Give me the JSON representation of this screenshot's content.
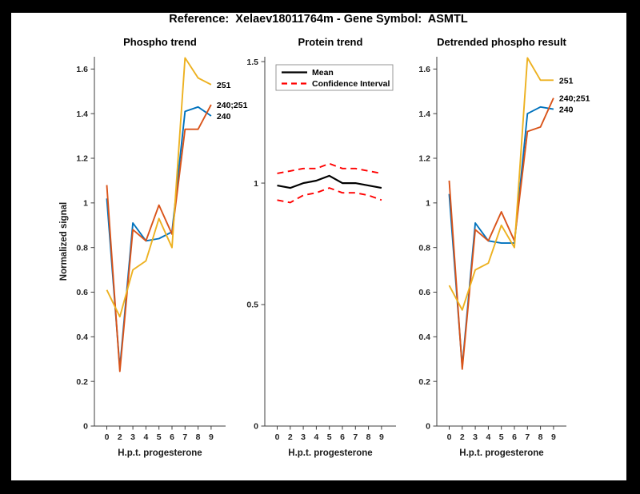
{
  "window": {
    "bg_color": "#000000"
  },
  "figure": {
    "bg_color": "#ffffff",
    "title": "Reference:  Xelaev18011764m - Gene Symbol:  ASMTL"
  },
  "colors": {
    "blue": "#0072BD",
    "orange": "#D95319",
    "yellow": "#EDB120",
    "red": "#FF0000",
    "black": "#000000",
    "spine": "#3f3f3f"
  },
  "chart_data": [
    {
      "type": "line",
      "title": "Phospho trend",
      "xlabel": "H.p.t. progesterone",
      "ylabel": "Normalized signal",
      "x_ticklabels": [
        "0",
        "2",
        "3",
        "4",
        "5",
        "6",
        "7",
        "8",
        "9"
      ],
      "yticks": [
        0,
        0.2,
        0.4,
        0.6,
        0.8,
        1,
        1.2,
        1.4,
        1.6
      ],
      "ylim": [
        0,
        1.655
      ],
      "grid": false,
      "legend_position": "none",
      "series": [
        {
          "name": "240",
          "color_key": "blue",
          "values": [
            1.02,
            0.26,
            0.91,
            0.83,
            0.84,
            0.87,
            1.41,
            1.43,
            1.39
          ],
          "end_label": "240"
        },
        {
          "name": "240;251",
          "color_key": "orange",
          "values": [
            1.08,
            0.245,
            0.88,
            0.83,
            0.99,
            0.86,
            1.33,
            1.33,
            1.44
          ],
          "end_label": "240;251"
        },
        {
          "name": "251",
          "color_key": "yellow",
          "values": [
            0.61,
            0.49,
            0.7,
            0.74,
            0.93,
            0.8,
            1.65,
            1.56,
            1.53
          ],
          "end_label": "251"
        }
      ]
    },
    {
      "type": "line",
      "title": "Protein trend",
      "xlabel": "H.p.t. progesterone",
      "ylabel": "",
      "x_ticklabels": [
        "0",
        "2",
        "3",
        "4",
        "5",
        "6",
        "7",
        "8",
        "9"
      ],
      "yticks": [
        0,
        0.5,
        1,
        1.5
      ],
      "ylim": [
        0,
        1.52
      ],
      "grid": false,
      "legend_position": "top-left",
      "legend": [
        {
          "label": "Mean",
          "color_key": "black",
          "dash": false
        },
        {
          "label": "Confidence Interval",
          "color_key": "red",
          "dash": true
        }
      ],
      "series": [
        {
          "name": "Mean",
          "color_key": "black",
          "width": 2.2,
          "values": [
            0.99,
            0.98,
            1.0,
            1.01,
            1.03,
            1.0,
            1.0,
            0.99,
            0.98
          ]
        },
        {
          "name": "CI upper",
          "color_key": "red",
          "dash": true,
          "values": [
            1.04,
            1.05,
            1.06,
            1.06,
            1.08,
            1.06,
            1.06,
            1.05,
            1.04
          ]
        },
        {
          "name": "CI lower",
          "color_key": "red",
          "dash": true,
          "values": [
            0.93,
            0.92,
            0.95,
            0.96,
            0.98,
            0.96,
            0.96,
            0.95,
            0.93
          ]
        }
      ]
    },
    {
      "type": "line",
      "title": "Detrended phospho result",
      "xlabel": "H.p.t. progesterone",
      "ylabel": "",
      "x_ticklabels": [
        "0",
        "2",
        "3",
        "4",
        "5",
        "6",
        "7",
        "8",
        "9"
      ],
      "yticks": [
        0,
        0.2,
        0.4,
        0.6,
        0.8,
        1,
        1.2,
        1.4,
        1.6
      ],
      "ylim": [
        0,
        1.655
      ],
      "grid": false,
      "legend_position": "none",
      "series": [
        {
          "name": "240",
          "color_key": "blue",
          "values": [
            1.04,
            0.265,
            0.91,
            0.83,
            0.82,
            0.82,
            1.4,
            1.43,
            1.42
          ],
          "end_label": "240"
        },
        {
          "name": "240;251",
          "color_key": "orange",
          "values": [
            1.1,
            0.255,
            0.88,
            0.83,
            0.96,
            0.83,
            1.32,
            1.34,
            1.47
          ],
          "end_label": "240;251"
        },
        {
          "name": "251",
          "color_key": "yellow",
          "values": [
            0.63,
            0.52,
            0.7,
            0.73,
            0.9,
            0.8,
            1.65,
            1.55,
            1.55
          ],
          "end_label": "251"
        }
      ]
    }
  ]
}
